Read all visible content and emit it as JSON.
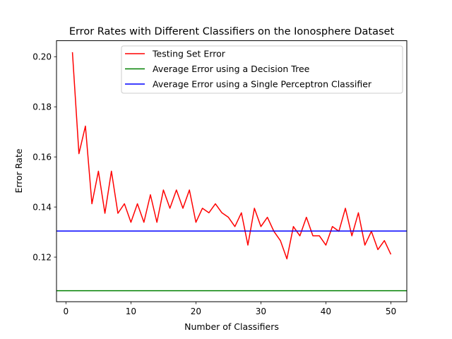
{
  "chart_data": {
    "type": "line",
    "title": "Error Rates with Different Classifiers on the Ionosphere Dataset",
    "xlabel": "Number of Classifiers",
    "ylabel": "Error Rate",
    "xlim": [
      -1.45,
      52.45
    ],
    "ylim": [
      0.1022,
      0.2064
    ],
    "xticks": [
      0,
      10,
      20,
      30,
      40,
      50
    ],
    "yticks": [
      0.12,
      0.14,
      0.16,
      0.18,
      0.2
    ],
    "xtick_labels": [
      "0",
      "10",
      "20",
      "30",
      "40",
      "50"
    ],
    "ytick_labels": [
      "0.12",
      "0.14",
      "0.16",
      "0.18",
      "0.20"
    ],
    "grid": false,
    "legend_position": "upper-right",
    "series": [
      {
        "name": "Testing Set Error",
        "color": "#ff0000",
        "kind": "line",
        "x": [
          1,
          2,
          3,
          4,
          5,
          6,
          7,
          8,
          9,
          10,
          11,
          12,
          13,
          14,
          15,
          16,
          17,
          18,
          19,
          20,
          21,
          22,
          23,
          24,
          25,
          26,
          27,
          28,
          29,
          30,
          31,
          32,
          33,
          34,
          35,
          36,
          37,
          38,
          39,
          40,
          41,
          42,
          43,
          44,
          45,
          46,
          47,
          48,
          49,
          50
        ],
        "values": [
          0.2018,
          0.1613,
          0.1723,
          0.1413,
          0.1543,
          0.1375,
          0.1543,
          0.1375,
          0.1413,
          0.1339,
          0.1413,
          0.1339,
          0.1449,
          0.1339,
          0.1468,
          0.1395,
          0.1468,
          0.1395,
          0.1468,
          0.1339,
          0.1395,
          0.1377,
          0.1413,
          0.1377,
          0.1359,
          0.1322,
          0.1377,
          0.1248,
          0.1395,
          0.1322,
          0.1359,
          0.1303,
          0.1266,
          0.1193,
          0.1322,
          0.1285,
          0.1359,
          0.1285,
          0.1285,
          0.1248,
          0.1322,
          0.1303,
          0.1395,
          0.1285,
          0.1377,
          0.1248,
          0.1303,
          0.123,
          0.1266,
          0.1211
        ]
      },
      {
        "name": "Average Error using a Decision Tree",
        "color": "#008000",
        "kind": "hline",
        "value": 0.1066
      },
      {
        "name": "Average Error using a Single Perceptron Classifier",
        "color": "#0000ff",
        "kind": "hline",
        "value": 0.1304
      }
    ]
  }
}
